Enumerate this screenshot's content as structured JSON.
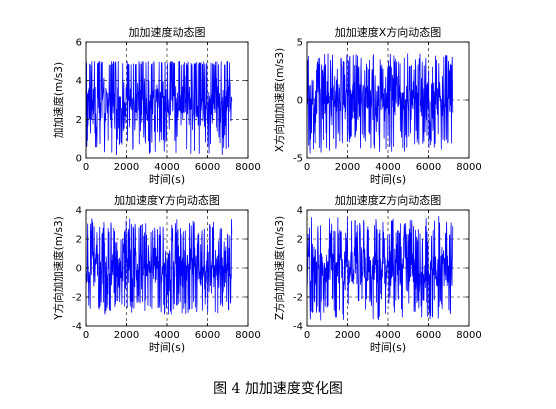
{
  "figure_caption": "图 4  加加速度变化图",
  "chart_data": [
    {
      "type": "line",
      "title": "加加速度动态图",
      "xlabel": "时间(s)",
      "ylabel": "加加速度(m/s3)",
      "xlim": [
        0,
        8000
      ],
      "ylim": [
        0,
        6
      ],
      "xticks": [
        0,
        2000,
        4000,
        6000,
        8000
      ],
      "yticks": [
        0,
        2,
        4,
        6
      ],
      "grid": "dashed",
      "series_color": "#0000ff",
      "x_extent": [
        0,
        7200
      ],
      "signal": {
        "baseline": 2.9,
        "band_low": 2.0,
        "band_high": 4.8,
        "min": 0.1,
        "max": 5.0
      }
    },
    {
      "type": "line",
      "title": "加加速度X方向动态图",
      "xlabel": "时间(s)",
      "ylabel": "X方向加加速度(m/s3)",
      "xlim": [
        0,
        8000
      ],
      "ylim": [
        -5,
        5
      ],
      "xticks": [
        0,
        2000,
        4000,
        6000,
        8000
      ],
      "yticks": [
        -5,
        0,
        5
      ],
      "grid": "dashed",
      "series_color": "#0000ff",
      "x_extent": [
        0,
        7200
      ],
      "signal": {
        "baseline": 0,
        "band_low": -2.5,
        "band_high": 2.5,
        "min": -4.6,
        "max": 4.0
      }
    },
    {
      "type": "line",
      "title": "加加速度Y方向动态图",
      "xlabel": "时间(s)",
      "ylabel": "Y方向加加速度(m/s3)",
      "xlim": [
        0,
        8000
      ],
      "ylim": [
        -4,
        4
      ],
      "xticks": [
        0,
        2000,
        4000,
        6000,
        8000
      ],
      "yticks": [
        -4,
        -2,
        0,
        2,
        4
      ],
      "grid": "dashed",
      "series_color": "#0000ff",
      "x_extent": [
        0,
        7200
      ],
      "signal": {
        "baseline": 0,
        "band_low": -2.2,
        "band_high": 2.2,
        "min": -3.2,
        "max": 3.4
      }
    },
    {
      "type": "line",
      "title": "加加速度Z方向动态图",
      "xlabel": "时间(s)",
      "ylabel": "Z方向加加速度(m/s3)",
      "xlim": [
        0,
        8000
      ],
      "ylim": [
        -4,
        4
      ],
      "xticks": [
        0,
        2000,
        4000,
        6000,
        8000
      ],
      "yticks": [
        -4,
        -2,
        0,
        2,
        4
      ],
      "grid": "dashed",
      "series_color": "#0000ff",
      "x_extent": [
        0,
        7200
      ],
      "signal": {
        "baseline": 0,
        "band_low": -2.0,
        "band_high": 2.0,
        "min": -3.6,
        "max": 3.6
      }
    }
  ]
}
